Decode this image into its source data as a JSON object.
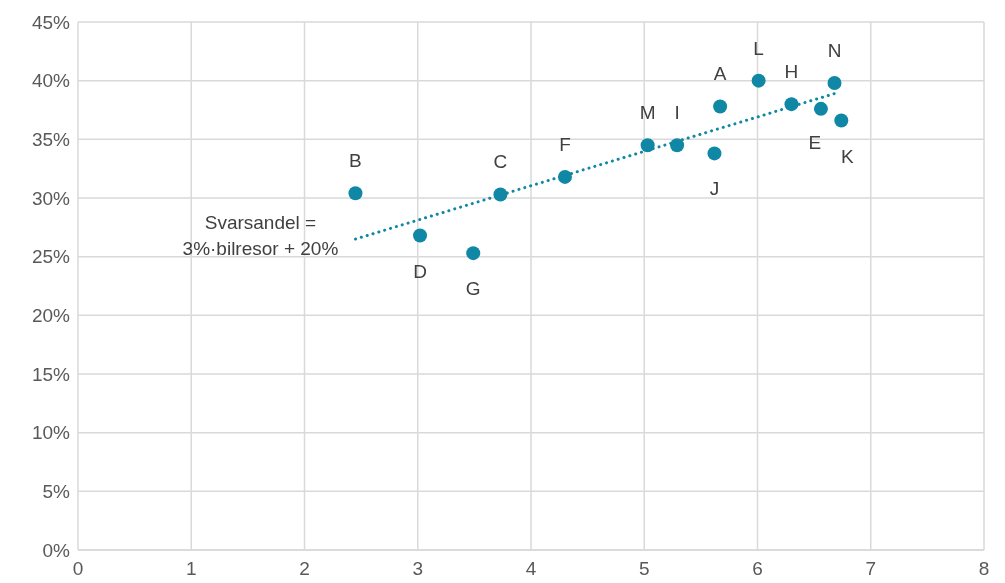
{
  "chart_data": {
    "type": "scatter",
    "xlim": [
      0,
      8
    ],
    "xticks": [
      0,
      1,
      2,
      3,
      4,
      5,
      6,
      7,
      8
    ],
    "ylim": [
      0,
      45
    ],
    "yticks": [
      {
        "value": 0,
        "label": "0%"
      },
      {
        "value": 5,
        "label": "5%"
      },
      {
        "value": 10,
        "label": "10%"
      },
      {
        "value": 15,
        "label": "15%"
      },
      {
        "value": 20,
        "label": "20%"
      },
      {
        "value": 25,
        "label": "25%"
      },
      {
        "value": 30,
        "label": "30%"
      },
      {
        "value": 35,
        "label": "35%"
      },
      {
        "value": 40,
        "label": "40%"
      },
      {
        "value": 45,
        "label": "45%"
      }
    ],
    "grid": true,
    "legend": false,
    "marker": "circle",
    "series": [
      {
        "color": "#0f87a5",
        "x": [
          2.45,
          3.02,
          3.49,
          3.73,
          4.3,
          5.03,
          5.29,
          5.62,
          5.67,
          6.01,
          6.3,
          6.56,
          6.68,
          6.74
        ],
        "values": [
          30.4,
          26.8,
          25.3,
          30.3,
          31.8,
          34.5,
          34.5,
          33.8,
          37.8,
          40.0,
          38.0,
          37.6,
          39.8,
          36.6
        ]
      },
      {
        "type": "line",
        "color": "#0f87a5",
        "line_style": "dotted",
        "marker": "none",
        "x": [
          2.45,
          6.68
        ],
        "values": [
          26.5,
          38.9
        ]
      }
    ],
    "annotations": [
      {
        "text": "B",
        "x": 2.45,
        "y": 30.4
      },
      {
        "text": "D",
        "x": 3.02,
        "y": 26.8
      },
      {
        "text": "G",
        "x": 3.49,
        "y": 25.3
      },
      {
        "text": "C",
        "x": 3.73,
        "y": 30.3
      },
      {
        "text": "F",
        "x": 4.3,
        "y": 31.8
      },
      {
        "text": "M",
        "x": 5.03,
        "y": 34.5
      },
      {
        "text": "I",
        "x": 5.29,
        "y": 34.5
      },
      {
        "text": "J",
        "x": 5.62,
        "y": 33.8
      },
      {
        "text": "A",
        "x": 5.67,
        "y": 37.8
      },
      {
        "text": "L",
        "x": 6.01,
        "y": 40.0
      },
      {
        "text": "H",
        "x": 6.3,
        "y": 38.0
      },
      {
        "text": "E",
        "x": 6.56,
        "y": 37.6
      },
      {
        "text": "N",
        "x": 6.68,
        "y": 39.8
      },
      {
        "text": "K",
        "x": 6.74,
        "y": 36.6
      },
      {
        "text": "Svarsandel = 3%·bilresor + 20%",
        "x": 2.45,
        "y": 26.5
      }
    ]
  }
}
